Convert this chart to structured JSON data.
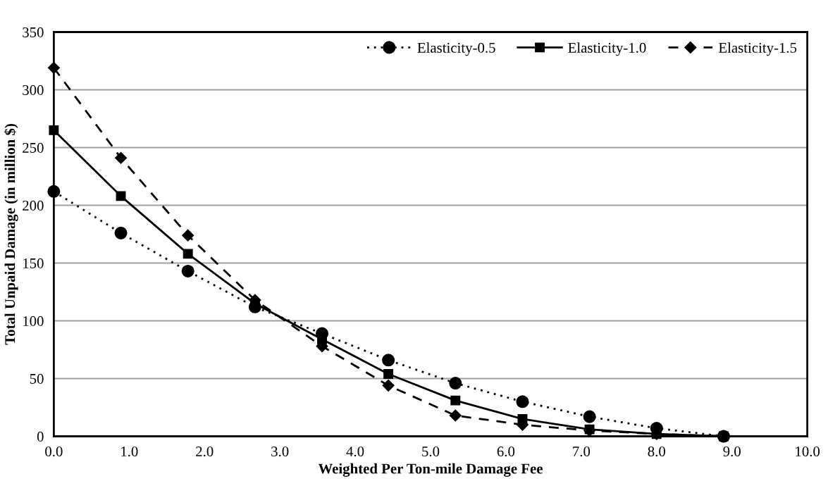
{
  "chart_data": {
    "type": "line",
    "xlabel": "Weighted Per Ton-mile Damage Fee",
    "ylabel": "Total Unpaid Damage (in million $)",
    "x": [
      0,
      0.89,
      1.78,
      2.67,
      3.56,
      4.44,
      5.33,
      6.22,
      7.11,
      8.0,
      8.89
    ],
    "series": [
      {
        "name": "Elasticity-0.5",
        "color": "#000000",
        "marker": "circle",
        "line_style": "dotted",
        "values": [
          212,
          176,
          143,
          112,
          89,
          66,
          46,
          30,
          17,
          7,
          0
        ]
      },
      {
        "name": "Elasticity-1.0",
        "color": "#000000",
        "marker": "square",
        "line_style": "solid",
        "values": [
          265,
          208,
          158,
          115,
          84,
          54,
          31,
          15,
          6,
          2,
          0
        ]
      },
      {
        "name": "Elasticity-1.5",
        "color": "#000000",
        "marker": "diamond",
        "line_style": "dashed",
        "values": [
          319,
          241,
          174,
          118,
          78,
          44,
          18,
          10,
          5,
          2,
          0
        ]
      }
    ],
    "xlim": [
      0,
      10
    ],
    "xticks": [
      {
        "value": 0,
        "label": "0.0"
      },
      {
        "value": 1,
        "label": "1.0"
      },
      {
        "value": 2,
        "label": "2.0"
      },
      {
        "value": 3,
        "label": "3.0"
      },
      {
        "value": 4,
        "label": "4.0"
      },
      {
        "value": 5,
        "label": "5.0"
      },
      {
        "value": 6,
        "label": "6.0"
      },
      {
        "value": 7,
        "label": "7.0"
      },
      {
        "value": 8,
        "label": "8.0"
      },
      {
        "value": 9,
        "label": "9.0"
      },
      {
        "value": 10,
        "label": "10.0"
      }
    ],
    "ylim": [
      0,
      350
    ],
    "yticks": [
      0,
      50,
      100,
      150,
      200,
      250,
      300,
      350
    ],
    "grid": "y",
    "legend": "top right"
  }
}
